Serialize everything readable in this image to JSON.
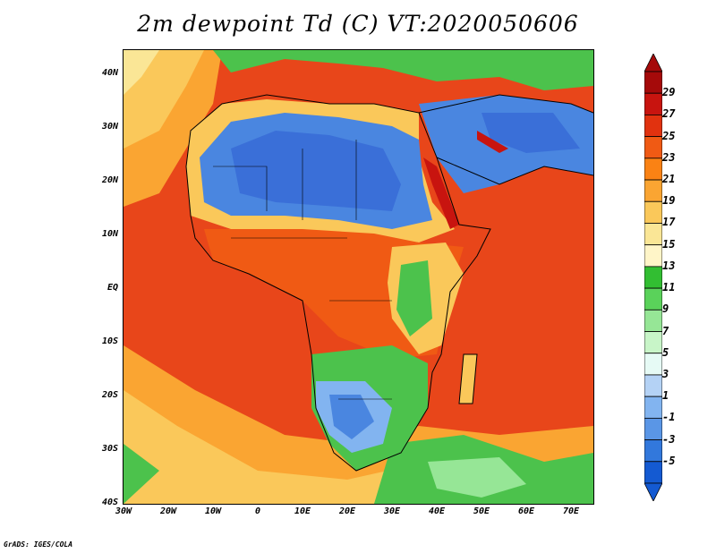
{
  "title": "2m dewpoint Td (C) VT:2020050606",
  "credit": "GrADS: IGES/COLA",
  "lat_labels": [
    "40N",
    "30N",
    "20N",
    "10N",
    "EQ",
    "10S",
    "20S",
    "30S",
    "40S"
  ],
  "lon_labels": [
    "30W",
    "20W",
    "10W",
    "0",
    "10E",
    "20E",
    "30E",
    "40E",
    "50E",
    "60E",
    "70E"
  ],
  "colorbar": {
    "labels": [
      "29",
      "27",
      "25",
      "23",
      "21",
      "19",
      "17",
      "15",
      "13",
      "11",
      "9",
      "7",
      "5",
      "3",
      "1",
      "-1",
      "-3",
      "-5"
    ],
    "colors": [
      "#a50a0a",
      "#c8140f",
      "#e1320f",
      "#f05a14",
      "#fa8214",
      "#faa532",
      "#fac85a",
      "#fae696",
      "#fff5c8",
      "#32be32",
      "#5ad25a",
      "#96e696",
      "#c8f5c8",
      "#e6faf5",
      "#b4d2f5",
      "#82b4f0",
      "#5a96e6",
      "#3278dc",
      "#145ad2"
    ]
  },
  "colors": {
    "ocean_warm": "#e84a1a",
    "desert": "#3a6fd8",
    "transition": "#fac85a",
    "vegetation": "#4cc24c"
  }
}
